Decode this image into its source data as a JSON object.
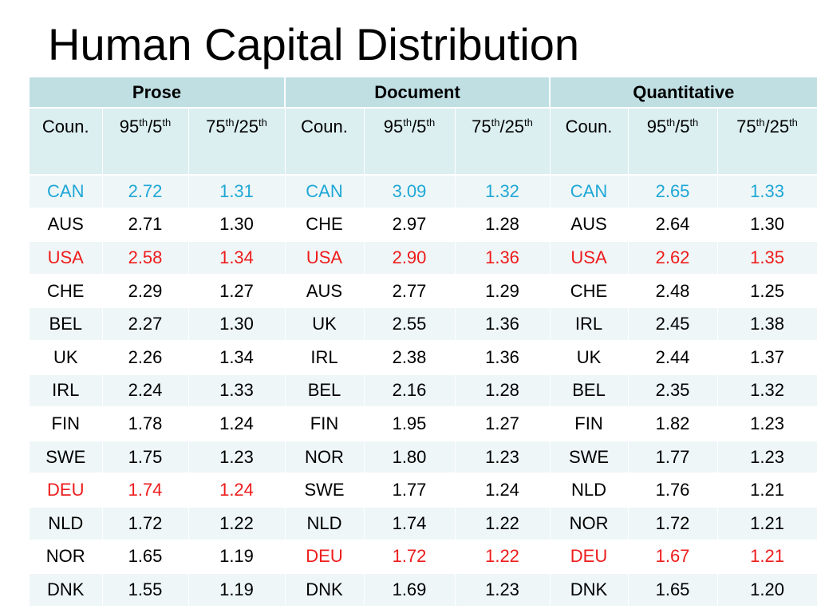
{
  "title": "Human Capital Distribution",
  "colors": {
    "header_bg": "#bfdfe3",
    "subheader_bg": "#dbeef0",
    "row_alt_bg": "#eef6f7",
    "highlight_blue": "#1ea7d6",
    "highlight_red": "#ee1c1c",
    "text": "#000000"
  },
  "groups": [
    "Prose",
    "Document",
    "Quantitative"
  ],
  "subheaders": {
    "country": "Coun.",
    "ratio1_a": "95",
    "ratio1_a_sup": "th",
    "ratio1_sep": "/5",
    "ratio1_b_sup": "th",
    "ratio2_a": "75",
    "ratio2_a_sup": "th",
    "ratio2_sep": "/25",
    "ratio2_b_sup": "th"
  },
  "rows": [
    {
      "cells": [
        {
          "text": "CAN",
          "color": "blue"
        },
        {
          "text": "2.72",
          "color": "blue"
        },
        {
          "text": "1.31",
          "color": "blue"
        },
        {
          "text": "CAN",
          "color": "blue"
        },
        {
          "text": "3.09",
          "color": "blue"
        },
        {
          "text": "1.32",
          "color": "blue"
        },
        {
          "text": "CAN",
          "color": "blue"
        },
        {
          "text": "2.65",
          "color": "blue"
        },
        {
          "text": "1.33",
          "color": "blue"
        }
      ]
    },
    {
      "cells": [
        {
          "text": "AUS",
          "color": "black"
        },
        {
          "text": "2.71",
          "color": "black"
        },
        {
          "text": "1.30",
          "color": "black"
        },
        {
          "text": "CHE",
          "color": "black"
        },
        {
          "text": "2.97",
          "color": "black"
        },
        {
          "text": "1.28",
          "color": "black"
        },
        {
          "text": "AUS",
          "color": "black"
        },
        {
          "text": "2.64",
          "color": "black"
        },
        {
          "text": "1.30",
          "color": "black"
        }
      ]
    },
    {
      "cells": [
        {
          "text": "USA",
          "color": "red"
        },
        {
          "text": "2.58",
          "color": "red"
        },
        {
          "text": "1.34",
          "color": "red"
        },
        {
          "text": "USA",
          "color": "red"
        },
        {
          "text": "2.90",
          "color": "red"
        },
        {
          "text": "1.36",
          "color": "red"
        },
        {
          "text": "USA",
          "color": "red"
        },
        {
          "text": "2.62",
          "color": "red"
        },
        {
          "text": "1.35",
          "color": "red"
        }
      ]
    },
    {
      "cells": [
        {
          "text": "CHE",
          "color": "black"
        },
        {
          "text": "2.29",
          "color": "black"
        },
        {
          "text": "1.27",
          "color": "black"
        },
        {
          "text": "AUS",
          "color": "black"
        },
        {
          "text": "2.77",
          "color": "black"
        },
        {
          "text": "1.29",
          "color": "black"
        },
        {
          "text": "CHE",
          "color": "black"
        },
        {
          "text": "2.48",
          "color": "black"
        },
        {
          "text": "1.25",
          "color": "black"
        }
      ]
    },
    {
      "cells": [
        {
          "text": "BEL",
          "color": "black"
        },
        {
          "text": "2.27",
          "color": "black"
        },
        {
          "text": "1.30",
          "color": "black"
        },
        {
          "text": "UK",
          "color": "black"
        },
        {
          "text": "2.55",
          "color": "black"
        },
        {
          "text": "1.36",
          "color": "black"
        },
        {
          "text": "IRL",
          "color": "black"
        },
        {
          "text": "2.45",
          "color": "black"
        },
        {
          "text": "1.38",
          "color": "black"
        }
      ]
    },
    {
      "cells": [
        {
          "text": "UK",
          "color": "black"
        },
        {
          "text": "2.26",
          "color": "black"
        },
        {
          "text": "1.34",
          "color": "black"
        },
        {
          "text": "IRL",
          "color": "black"
        },
        {
          "text": "2.38",
          "color": "black"
        },
        {
          "text": "1.36",
          "color": "black"
        },
        {
          "text": "UK",
          "color": "black"
        },
        {
          "text": "2.44",
          "color": "black"
        },
        {
          "text": "1.37",
          "color": "black"
        }
      ]
    },
    {
      "cells": [
        {
          "text": "IRL",
          "color": "black"
        },
        {
          "text": "2.24",
          "color": "black"
        },
        {
          "text": "1.33",
          "color": "black"
        },
        {
          "text": "BEL",
          "color": "black"
        },
        {
          "text": "2.16",
          "color": "black"
        },
        {
          "text": "1.28",
          "color": "black"
        },
        {
          "text": "BEL",
          "color": "black"
        },
        {
          "text": "2.35",
          "color": "black"
        },
        {
          "text": "1.32",
          "color": "black"
        }
      ]
    },
    {
      "cells": [
        {
          "text": "FIN",
          "color": "black"
        },
        {
          "text": "1.78",
          "color": "black"
        },
        {
          "text": "1.24",
          "color": "black"
        },
        {
          "text": "FIN",
          "color": "black"
        },
        {
          "text": "1.95",
          "color": "black"
        },
        {
          "text": "1.27",
          "color": "black"
        },
        {
          "text": "FIN",
          "color": "black"
        },
        {
          "text": "1.82",
          "color": "black"
        },
        {
          "text": "1.23",
          "color": "black"
        }
      ]
    },
    {
      "cells": [
        {
          "text": "SWE",
          "color": "black"
        },
        {
          "text": "1.75",
          "color": "black"
        },
        {
          "text": "1.23",
          "color": "black"
        },
        {
          "text": "NOR",
          "color": "black"
        },
        {
          "text": "1.80",
          "color": "black"
        },
        {
          "text": "1.23",
          "color": "black"
        },
        {
          "text": "SWE",
          "color": "black"
        },
        {
          "text": "1.77",
          "color": "black"
        },
        {
          "text": "1.23",
          "color": "black"
        }
      ]
    },
    {
      "cells": [
        {
          "text": "DEU",
          "color": "red"
        },
        {
          "text": "1.74",
          "color": "red"
        },
        {
          "text": "1.24",
          "color": "red"
        },
        {
          "text": "SWE",
          "color": "black"
        },
        {
          "text": "1.77",
          "color": "black"
        },
        {
          "text": "1.24",
          "color": "black"
        },
        {
          "text": "NLD",
          "color": "black"
        },
        {
          "text": "1.76",
          "color": "black"
        },
        {
          "text": "1.21",
          "color": "black"
        }
      ]
    },
    {
      "cells": [
        {
          "text": "NLD",
          "color": "black"
        },
        {
          "text": "1.72",
          "color": "black"
        },
        {
          "text": "1.22",
          "color": "black"
        },
        {
          "text": "NLD",
          "color": "black"
        },
        {
          "text": "1.74",
          "color": "black"
        },
        {
          "text": "1.22",
          "color": "black"
        },
        {
          "text": "NOR",
          "color": "black"
        },
        {
          "text": "1.72",
          "color": "black"
        },
        {
          "text": "1.21",
          "color": "black"
        }
      ]
    },
    {
      "cells": [
        {
          "text": "NOR",
          "color": "black"
        },
        {
          "text": "1.65",
          "color": "black"
        },
        {
          "text": "1.19",
          "color": "black"
        },
        {
          "text": "DEU",
          "color": "red"
        },
        {
          "text": "1.72",
          "color": "red"
        },
        {
          "text": "1.22",
          "color": "red"
        },
        {
          "text": "DEU",
          "color": "red"
        },
        {
          "text": "1.67",
          "color": "red"
        },
        {
          "text": "1.21",
          "color": "red"
        }
      ]
    },
    {
      "cells": [
        {
          "text": "DNK",
          "color": "black"
        },
        {
          "text": "1.55",
          "color": "black"
        },
        {
          "text": "1.19",
          "color": "black"
        },
        {
          "text": "DNK",
          "color": "black"
        },
        {
          "text": "1.69",
          "color": "black"
        },
        {
          "text": "1.23",
          "color": "black"
        },
        {
          "text": "DNK",
          "color": "black"
        },
        {
          "text": "1.65",
          "color": "black"
        },
        {
          "text": "1.20",
          "color": "black"
        }
      ]
    }
  ]
}
